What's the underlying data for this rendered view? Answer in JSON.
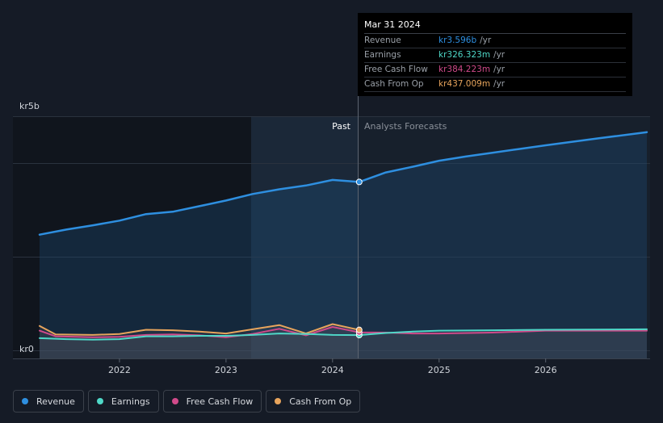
{
  "chart_data": {
    "type": "line",
    "y_axis": {
      "top_label": "kr5b",
      "bottom_label": "kr0",
      "ylim": [
        0,
        5000
      ]
    },
    "x_ticks": [
      "2022",
      "2023",
      "2024",
      "2025",
      "2026"
    ],
    "divider": {
      "past_label": "Past",
      "forecast_label": "Analysts Forecasts"
    },
    "series": [
      {
        "name": "Revenue",
        "color": "#2e8fe0",
        "points": [
          [
            2021.25,
            2470
          ],
          [
            2021.5,
            2580
          ],
          [
            2021.75,
            2670
          ],
          [
            2022,
            2770
          ],
          [
            2022.25,
            2910
          ],
          [
            2022.5,
            2960
          ],
          [
            2022.75,
            3080
          ],
          [
            2023,
            3200
          ],
          [
            2023.25,
            3340
          ],
          [
            2023.5,
            3440
          ],
          [
            2023.75,
            3520
          ],
          [
            2024,
            3640
          ],
          [
            2024.25,
            3596
          ],
          [
            2024.5,
            3800
          ],
          [
            2024.75,
            3920
          ],
          [
            2025,
            4050
          ],
          [
            2025.25,
            4140
          ],
          [
            2025.5,
            4220
          ],
          [
            2025.75,
            4300
          ],
          [
            2026,
            4380
          ],
          [
            2026.5,
            4530
          ],
          [
            2026.95,
            4660
          ]
        ]
      },
      {
        "name": "Earnings",
        "color": "#4fd8c8",
        "points": [
          [
            2021.25,
            260
          ],
          [
            2021.5,
            240
          ],
          [
            2021.75,
            230
          ],
          [
            2022,
            240
          ],
          [
            2022.25,
            300
          ],
          [
            2022.5,
            300
          ],
          [
            2022.75,
            310
          ],
          [
            2023,
            310
          ],
          [
            2023.25,
            330
          ],
          [
            2023.5,
            360
          ],
          [
            2023.75,
            350
          ],
          [
            2024,
            330
          ],
          [
            2024.25,
            326
          ],
          [
            2024.5,
            370
          ],
          [
            2024.75,
            400
          ],
          [
            2025,
            420
          ],
          [
            2025.5,
            430
          ],
          [
            2026,
            440
          ],
          [
            2026.95,
            450
          ]
        ]
      },
      {
        "name": "Free Cash Flow",
        "color": "#d04a8a",
        "points": [
          [
            2021.25,
            420
          ],
          [
            2021.4,
            300
          ],
          [
            2021.75,
            280
          ],
          [
            2022,
            290
          ],
          [
            2022.25,
            330
          ],
          [
            2022.5,
            340
          ],
          [
            2022.75,
            320
          ],
          [
            2023,
            280
          ],
          [
            2023.25,
            350
          ],
          [
            2023.5,
            460
          ],
          [
            2023.75,
            320
          ],
          [
            2024,
            500
          ],
          [
            2024.25,
            384
          ],
          [
            2024.5,
            380
          ],
          [
            2024.75,
            360
          ],
          [
            2025,
            360
          ],
          [
            2025.5,
            380
          ],
          [
            2026,
            420
          ],
          [
            2026.95,
            420
          ]
        ]
      },
      {
        "name": "Cash From Op",
        "color": "#e7a45c",
        "points": [
          [
            2021.25,
            520
          ],
          [
            2021.4,
            340
          ],
          [
            2021.75,
            330
          ],
          [
            2022,
            350
          ],
          [
            2022.25,
            440
          ],
          [
            2022.5,
            430
          ],
          [
            2022.75,
            400
          ],
          [
            2023,
            360
          ],
          [
            2023.25,
            450
          ],
          [
            2023.5,
            540
          ],
          [
            2023.75,
            360
          ],
          [
            2024,
            560
          ],
          [
            2024.25,
            437
          ]
        ]
      }
    ],
    "tooltip": {
      "date": "Mar 31 2024",
      "rows": [
        {
          "label": "Revenue",
          "value": "kr3.596b",
          "unit": "/yr",
          "color": "#2e8fe0"
        },
        {
          "label": "Earnings",
          "value": "kr326.323m",
          "unit": "/yr",
          "color": "#4fd8c8"
        },
        {
          "label": "Free Cash Flow",
          "value": "kr384.223m",
          "unit": "/yr",
          "color": "#d04a8a"
        },
        {
          "label": "Cash From Op",
          "value": "kr437.009m",
          "unit": "/yr",
          "color": "#e7a45c"
        }
      ]
    }
  },
  "legend": [
    {
      "label": "Revenue",
      "color": "#2e8fe0"
    },
    {
      "label": "Earnings",
      "color": "#4fd8c8"
    },
    {
      "label": "Free Cash Flow",
      "color": "#d04a8a"
    },
    {
      "label": "Cash From Op",
      "color": "#e7a45c"
    }
  ]
}
